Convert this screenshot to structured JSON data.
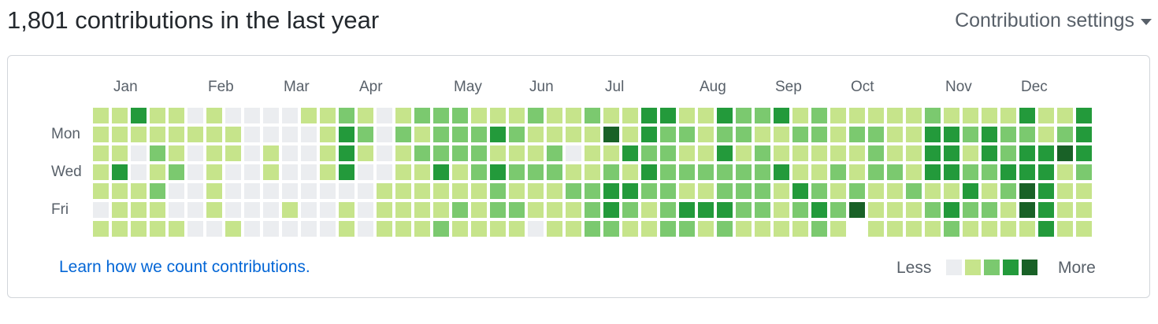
{
  "header": {
    "title": "1,801 contributions in the last year",
    "settings_label": "Contribution settings"
  },
  "calendar": {
    "months": [
      {
        "label": "Jan",
        "col": 1
      },
      {
        "label": "Feb",
        "col": 6
      },
      {
        "label": "Mar",
        "col": 10
      },
      {
        "label": "Apr",
        "col": 14
      },
      {
        "label": "May",
        "col": 19
      },
      {
        "label": "Jun",
        "col": 23
      },
      {
        "label": "Jul",
        "col": 27
      },
      {
        "label": "Aug",
        "col": 32
      },
      {
        "label": "Sep",
        "col": 36
      },
      {
        "label": "Oct",
        "col": 40
      },
      {
        "label": "Nov",
        "col": 45
      },
      {
        "label": "Dec",
        "col": 49
      }
    ],
    "weekdays": [
      {
        "label": "Mon",
        "row": 1
      },
      {
        "label": "Wed",
        "row": 3
      },
      {
        "label": "Fri",
        "row": 5
      }
    ],
    "colors": [
      "#ebedf0",
      "#c6e48b",
      "#7bc96f",
      "#239a3b",
      "#196127"
    ],
    "weeks": [
      "1111101",
      "1113111",
      "3100111",
      "1121211",
      "1112001",
      "0100000",
      "1111110",
      "0110001",
      "0000000",
      "0011000",
      "0000010",
      "1000000",
      "1111000",
      "2333011",
      "1210000",
      "0000111",
      "1211111",
      "2121111",
      "2223112",
      "2221121",
      "1222111",
      "1313221",
      "1212121",
      "2112110",
      "1122111",
      "1101211",
      "2111222",
      "1412332",
      "1131321",
      "3323211",
      "3222222",
      "1212132",
      "1112131",
      "3232232",
      "2212221",
      "2122221",
      "3113111",
      "1211321",
      "2211232",
      "1112121",
      "1211245",
      "1222111",
      "1112111",
      "1111211",
      "2333121",
      "1333132",
      "1212321",
      "1332121",
      "1223211",
      "3233441",
      "1133333",
      "1241111",
      "3332111"
    ]
  },
  "footer": {
    "learn_link": "Learn how we count contributions.",
    "legend_less": "Less",
    "legend_more": "More"
  }
}
